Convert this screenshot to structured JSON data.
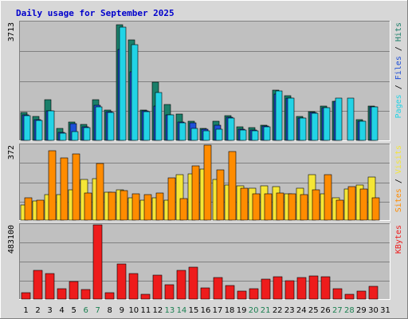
{
  "title": "Daily usage for September 2025",
  "colors": {
    "hits": "#1a7f6a",
    "files": "#1e4fd8",
    "pages": "#22d3e6",
    "visits": "#f5e636",
    "sites": "#ff8c00",
    "kbytes": "#ee1c1c",
    "weekend_tick": "#1a7f50",
    "weekday_tick": "#000000",
    "plot_bg": "#c0c0c0",
    "outer_bg": "#d7d7d7"
  },
  "labels": {
    "panel1_max": "3713",
    "panel2_max": "372",
    "panel3_max": "483100",
    "panel1_right": [
      {
        "text": "Pages",
        "color": "#22d3e6"
      },
      {
        "text": " / ",
        "color": "#000000"
      },
      {
        "text": "Files",
        "color": "#1e4fd8"
      },
      {
        "text": " / ",
        "color": "#000000"
      },
      {
        "text": "Hits",
        "color": "#1a7f6a"
      }
    ],
    "panel2_right": [
      {
        "text": "Sites",
        "color": "#ff8c00"
      },
      {
        "text": " / ",
        "color": "#000000"
      },
      {
        "text": "Visits",
        "color": "#f5e636"
      }
    ],
    "panel3_right": [
      {
        "text": "KBytes",
        "color": "#ee1c1c"
      }
    ]
  },
  "chart_data": [
    {
      "type": "bar",
      "panel": "hits_files_pages",
      "title": "Daily usage for September 2025",
      "ylabel": "3713",
      "ylim": [
        0,
        3713
      ],
      "categories": [
        "1",
        "2",
        "3",
        "4",
        "5",
        "6",
        "7",
        "8",
        "9",
        "10",
        "11",
        "12",
        "13",
        "14",
        "15",
        "16",
        "17",
        "18",
        "19",
        "20",
        "21",
        "22",
        "23",
        "24",
        "25",
        "26",
        "27",
        "28",
        "29",
        "30",
        "31"
      ],
      "weekend_days": [
        "6",
        "7",
        "13",
        "14",
        "20",
        "21",
        "27",
        "28"
      ],
      "series": [
        {
          "name": "Hits",
          "values": [
            870,
            760,
            1270,
            370,
            570,
            510,
            1270,
            950,
            3630,
            3150,
            950,
            1820,
            1130,
            830,
            600,
            380,
            600,
            780,
            430,
            390,
            470,
            1590,
            1400,
            750,
            910,
            1070,
            1240,
            0,
            650,
            1090,
            0
          ]
        },
        {
          "name": "Files",
          "values": [
            800,
            640,
            940,
            250,
            530,
            430,
            1100,
            900,
            2870,
            2150,
            920,
            1070,
            810,
            580,
            560,
            340,
            470,
            720,
            360,
            320,
            450,
            1460,
            1330,
            710,
            880,
            1040,
            1220,
            0,
            610,
            1050,
            0
          ]
        },
        {
          "name": "Pages",
          "values": [
            780,
            620,
            930,
            230,
            270,
            400,
            1050,
            880,
            3570,
            3000,
            900,
            1500,
            810,
            540,
            370,
            300,
            350,
            700,
            330,
            290,
            420,
            1550,
            1320,
            710,
            850,
            1020,
            1330,
            1330,
            600,
            1050,
            0
          ]
        }
      ]
    },
    {
      "type": "bar",
      "panel": "visits_sites",
      "ylabel": "372",
      "ylim": [
        0,
        372
      ],
      "categories": [
        "1",
        "2",
        "3",
        "4",
        "5",
        "6",
        "7",
        "8",
        "9",
        "10",
        "11",
        "12",
        "13",
        "14",
        "15",
        "16",
        "17",
        "18",
        "19",
        "20",
        "21",
        "22",
        "23",
        "24",
        "25",
        "26",
        "27",
        "28",
        "29",
        "30",
        "31"
      ],
      "weekend_days": [
        "6",
        "7",
        "13",
        "14",
        "20",
        "21",
        "27",
        "28"
      ],
      "series": [
        {
          "name": "Visits",
          "values": [
            75,
            95,
            125,
            125,
            150,
            200,
            205,
            140,
            150,
            110,
            100,
            110,
            100,
            225,
            230,
            255,
            200,
            175,
            170,
            160,
            170,
            165,
            130,
            160,
            225,
            130,
            110,
            155,
            175,
            215,
            0
          ]
        },
        {
          "name": "Sites",
          "values": [
            110,
            100,
            345,
            310,
            330,
            135,
            280,
            140,
            145,
            130,
            125,
            135,
            210,
            105,
            270,
            372,
            250,
            340,
            160,
            130,
            130,
            135,
            130,
            125,
            150,
            225,
            100,
            165,
            155,
            110,
            0
          ]
        }
      ]
    },
    {
      "type": "bar",
      "panel": "kbytes",
      "ylabel": "483100",
      "ylim": [
        0,
        483100
      ],
      "categories": [
        "1",
        "2",
        "3",
        "4",
        "5",
        "6",
        "7",
        "8",
        "9",
        "10",
        "11",
        "12",
        "13",
        "14",
        "15",
        "16",
        "17",
        "18",
        "19",
        "20",
        "21",
        "22",
        "23",
        "24",
        "25",
        "26",
        "27",
        "28",
        "29",
        "30",
        "31"
      ],
      "weekend_days": [
        "6",
        "7",
        "13",
        "14",
        "20",
        "21",
        "27",
        "28"
      ],
      "series": [
        {
          "name": "KBytes",
          "values": [
            40000,
            185000,
            165000,
            65000,
            115000,
            60000,
            483100,
            40000,
            230000,
            165000,
            30000,
            155000,
            95000,
            185000,
            210000,
            75000,
            140000,
            90000,
            50000,
            65000,
            130000,
            145000,
            120000,
            140000,
            150000,
            145000,
            65000,
            30000,
            50000,
            85000,
            0
          ]
        }
      ]
    }
  ]
}
